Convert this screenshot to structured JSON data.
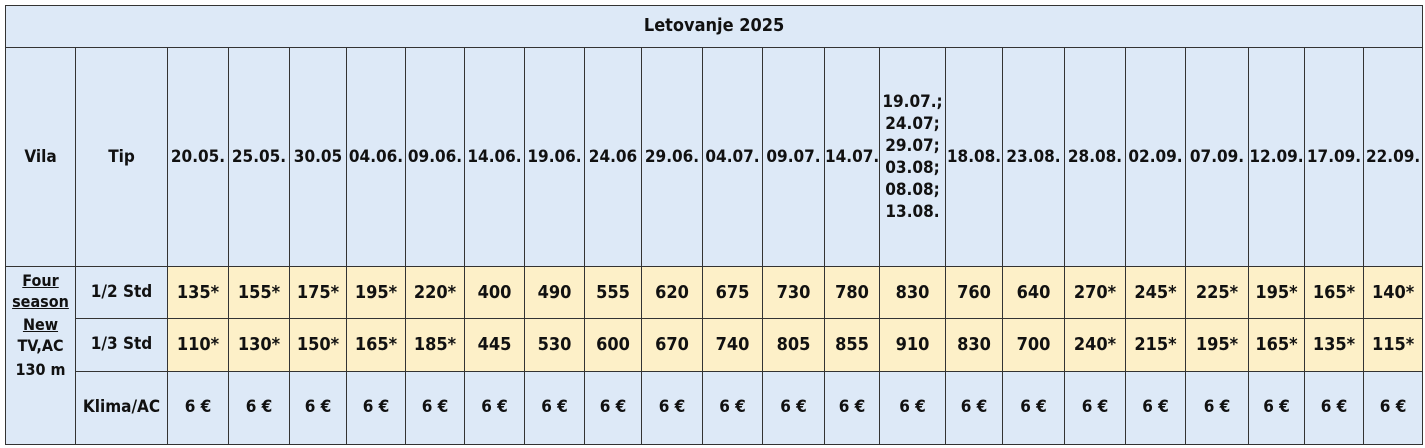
{
  "title": "Letovanje 2025",
  "headers": {
    "vila": "Vila",
    "tip": "Tip"
  },
  "dates": [
    "20.05.",
    "25.05.",
    "30.05",
    "04.06.",
    "09.06.",
    "14.06.",
    "19.06.",
    "24.06",
    "29.06.",
    "04.07.",
    "09.07.",
    "14.07.",
    "19.07.;\n24.07;\n29.07;\n03.08;\n08.08;\n13.08.",
    "18.08.",
    "23.08.",
    "28.08.",
    "02.09.",
    "07.09.",
    "12.09.",
    "17.09.",
    "22.09."
  ],
  "villa": {
    "name_line1": "Four",
    "name_line2": "season",
    "name_line3": "New",
    "amenities": "TV,AC",
    "size": "130 m"
  },
  "rows": [
    {
      "tip": "1/2 Std",
      "values": [
        "135*",
        "155*",
        "175*",
        "195*",
        "220*",
        "400",
        "490",
        "555",
        "620",
        "675",
        "730",
        "780",
        "830",
        "760",
        "640",
        "270*",
        "245*",
        "225*",
        "195*",
        "165*",
        "140*"
      ]
    },
    {
      "tip": "1/3 Std",
      "values": [
        "110*",
        "130*",
        "150*",
        "165*",
        "185*",
        "445",
        "530",
        "600",
        "670",
        "740",
        "805",
        "855",
        "910",
        "830",
        "700",
        "240*",
        "215*",
        "195*",
        "165*",
        "135*",
        "115*"
      ]
    },
    {
      "tip": "Klima/AC",
      "values": [
        "6 €",
        "6 €",
        "6 €",
        "6 €",
        "6 €",
        "6 €",
        "6 €",
        "6 €",
        "6 €",
        "6 €",
        "6 €",
        "6 €",
        "6 €",
        "6 €",
        "6 €",
        "6 €",
        "6 €",
        "6 €",
        "6 €",
        "6 €",
        "6 €"
      ]
    }
  ]
}
